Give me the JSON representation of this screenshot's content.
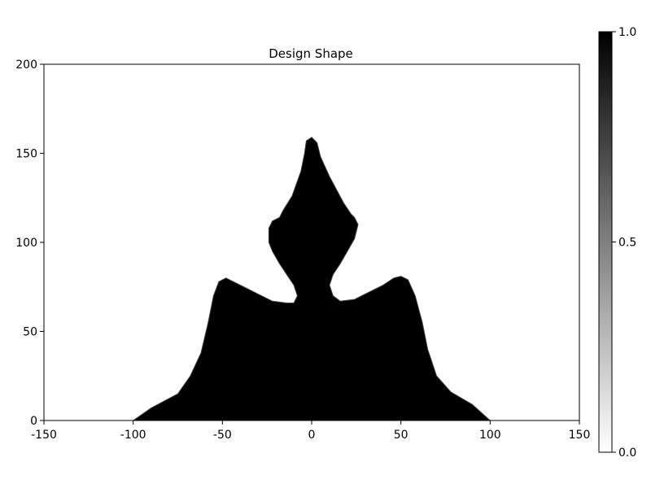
{
  "chart_data": {
    "type": "heatmap",
    "title": "Design Shape",
    "xlabel": "",
    "ylabel": "",
    "xlim": [
      -150,
      150
    ],
    "ylim": [
      0,
      200
    ],
    "x_ticks": [
      "-150",
      "-100",
      "-50",
      "0",
      "50",
      "100",
      "150"
    ],
    "y_ticks": [
      "0",
      "50",
      "100",
      "150",
      "200"
    ],
    "colorbar": {
      "range": [
        0.0,
        1.0
      ],
      "ticks": [
        "0.0",
        "0.5",
        "1.0"
      ],
      "colormap": "grayscale",
      "low_color": "#ffffff",
      "high_color": "#000000"
    },
    "shape_outline": [
      [
        -100,
        0
      ],
      [
        -90,
        7
      ],
      [
        -75,
        15
      ],
      [
        -68,
        25
      ],
      [
        -62,
        38
      ],
      [
        -58,
        55
      ],
      [
        -55,
        70
      ],
      [
        -52,
        78
      ],
      [
        -48,
        80
      ],
      [
        -44,
        78
      ],
      [
        -38,
        75
      ],
      [
        -30,
        71
      ],
      [
        -22,
        67
      ],
      [
        -14,
        66
      ],
      [
        -10,
        66
      ],
      [
        -8,
        70
      ],
      [
        -10,
        76
      ],
      [
        -14,
        82
      ],
      [
        -18,
        88
      ],
      [
        -22,
        95
      ],
      [
        -24,
        100
      ],
      [
        -24,
        108
      ],
      [
        -22,
        112
      ],
      [
        -18,
        114
      ],
      [
        -16,
        118
      ],
      [
        -11,
        126
      ],
      [
        -6,
        140
      ],
      [
        -4,
        150
      ],
      [
        -3,
        157
      ],
      [
        0,
        159
      ],
      [
        3,
        156
      ],
      [
        5,
        148
      ],
      [
        10,
        137
      ],
      [
        18,
        122
      ],
      [
        22,
        116
      ],
      [
        24,
        114
      ],
      [
        26,
        110
      ],
      [
        24,
        102
      ],
      [
        20,
        95
      ],
      [
        16,
        88
      ],
      [
        12,
        82
      ],
      [
        10,
        76
      ],
      [
        12,
        70
      ],
      [
        16,
        67
      ],
      [
        24,
        68
      ],
      [
        32,
        72
      ],
      [
        40,
        76
      ],
      [
        46,
        80
      ],
      [
        50,
        81
      ],
      [
        54,
        79
      ],
      [
        58,
        70
      ],
      [
        62,
        55
      ],
      [
        65,
        40
      ],
      [
        70,
        25
      ],
      [
        78,
        16
      ],
      [
        90,
        9
      ],
      [
        100,
        0
      ]
    ]
  }
}
